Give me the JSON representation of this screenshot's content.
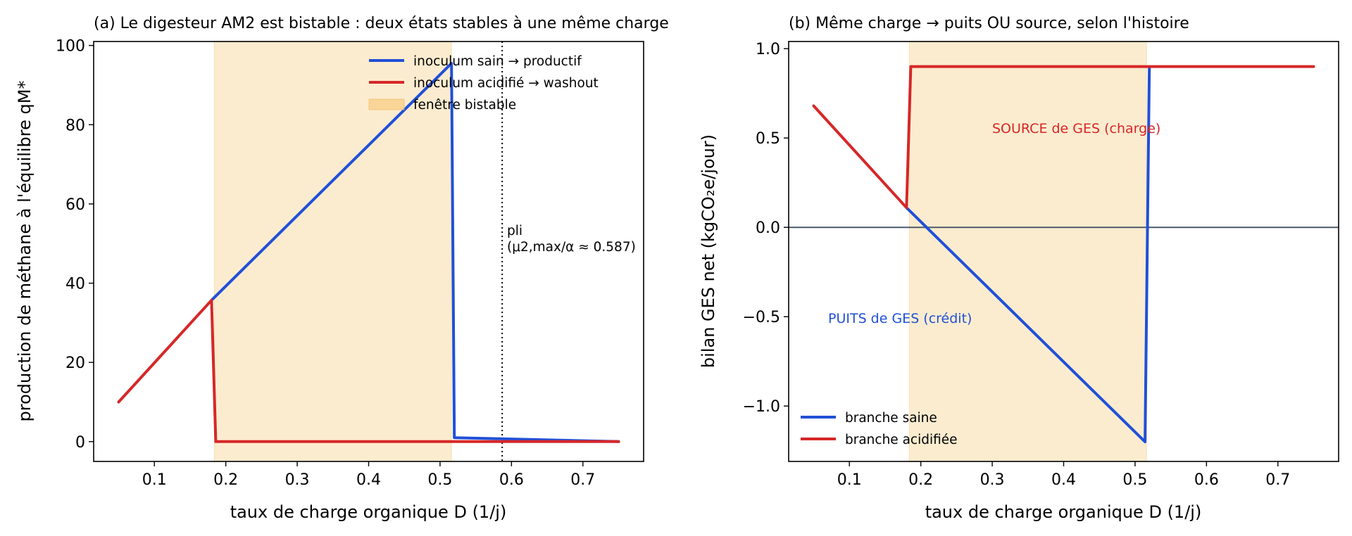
{
  "chart_data": [
    {
      "type": "line",
      "title": "(a) Le digesteur AM2 est bistable : deux états stables à une même charge",
      "xlabel": "taux de charge organique  D (1/j)",
      "ylabel": "production de méthane à l'équilibre  qM*",
      "xlim": [
        0.015,
        0.785
      ],
      "ylim": [
        -5,
        101
      ],
      "xticks": [
        0.1,
        0.2,
        0.3,
        0.4,
        0.5,
        0.6,
        0.7
      ],
      "xtick_labels": [
        "0.1",
        "0.2",
        "0.3",
        "0.4",
        "0.5",
        "0.6",
        "0.7"
      ],
      "yticks": [
        0,
        20,
        40,
        60,
        80,
        100
      ],
      "ytick_labels": [
        "0",
        "20",
        "40",
        "60",
        "80",
        "100"
      ],
      "grid": false,
      "legend_position": "top-right",
      "band": {
        "name": "fenêtre bistable",
        "x": [
          0.184,
          0.516
        ],
        "color": "#f5c36a"
      },
      "series": [
        {
          "name": "inoculum sain → productif",
          "color": "#2050d8",
          "x": [
            0.18,
            0.516,
            0.52,
            0.75
          ],
          "y": [
            35.7,
            95.5,
            1,
            0
          ]
        },
        {
          "name": "inoculum acidifié → washout",
          "color": "#d62728",
          "x": [
            0.05,
            0.18,
            0.186,
            0.52,
            0.75
          ],
          "y": [
            10,
            35.7,
            0,
            0,
            0
          ]
        }
      ],
      "vline": {
        "x": 0.587,
        "label_line1": "pli",
        "label_line2": "(μ2,max/α ≈ 0.587)"
      }
    },
    {
      "type": "line",
      "title": "(b) Même charge → puits OU source, selon l'histoire",
      "xlabel": "taux de charge organique  D (1/j)",
      "ylabel": "bilan GES net (kgCO₂e/jour)",
      "xlim": [
        0.015,
        0.785
      ],
      "ylim": [
        -1.31,
        1.04
      ],
      "xticks": [
        0.1,
        0.2,
        0.3,
        0.4,
        0.5,
        0.6,
        0.7
      ],
      "xtick_labels": [
        "0.1",
        "0.2",
        "0.3",
        "0.4",
        "0.5",
        "0.6",
        "0.7"
      ],
      "yticks": [
        -1.0,
        -0.5,
        0.0,
        0.5,
        1.0
      ],
      "ytick_labels": [
        "−1.0",
        "−0.5",
        "0.0",
        "0.5",
        "1.0"
      ],
      "grid": false,
      "legend_position": "bottom-left",
      "band": {
        "x": [
          0.184,
          0.516
        ],
        "color": "#f5c36a"
      },
      "hline": {
        "y": 0
      },
      "series": [
        {
          "name": "branche saine",
          "color": "#2050d8",
          "x": [
            0.18,
            0.514,
            0.52
          ],
          "y": [
            0.11,
            -1.2,
            0.9
          ]
        },
        {
          "name": "branche acidifiée",
          "color": "#d62728",
          "x": [
            0.05,
            0.18,
            0.186,
            0.75
          ],
          "y": [
            0.68,
            0.11,
            0.9,
            0.9
          ]
        }
      ],
      "annotations": [
        {
          "text": "SOURCE de GES (charge)",
          "x": 0.3,
          "y": 0.5,
          "color": "#d62728"
        },
        {
          "text": "PUITS de GES (crédit)",
          "x": 0.07,
          "y": -0.52,
          "color": "#2050d8"
        }
      ]
    }
  ]
}
